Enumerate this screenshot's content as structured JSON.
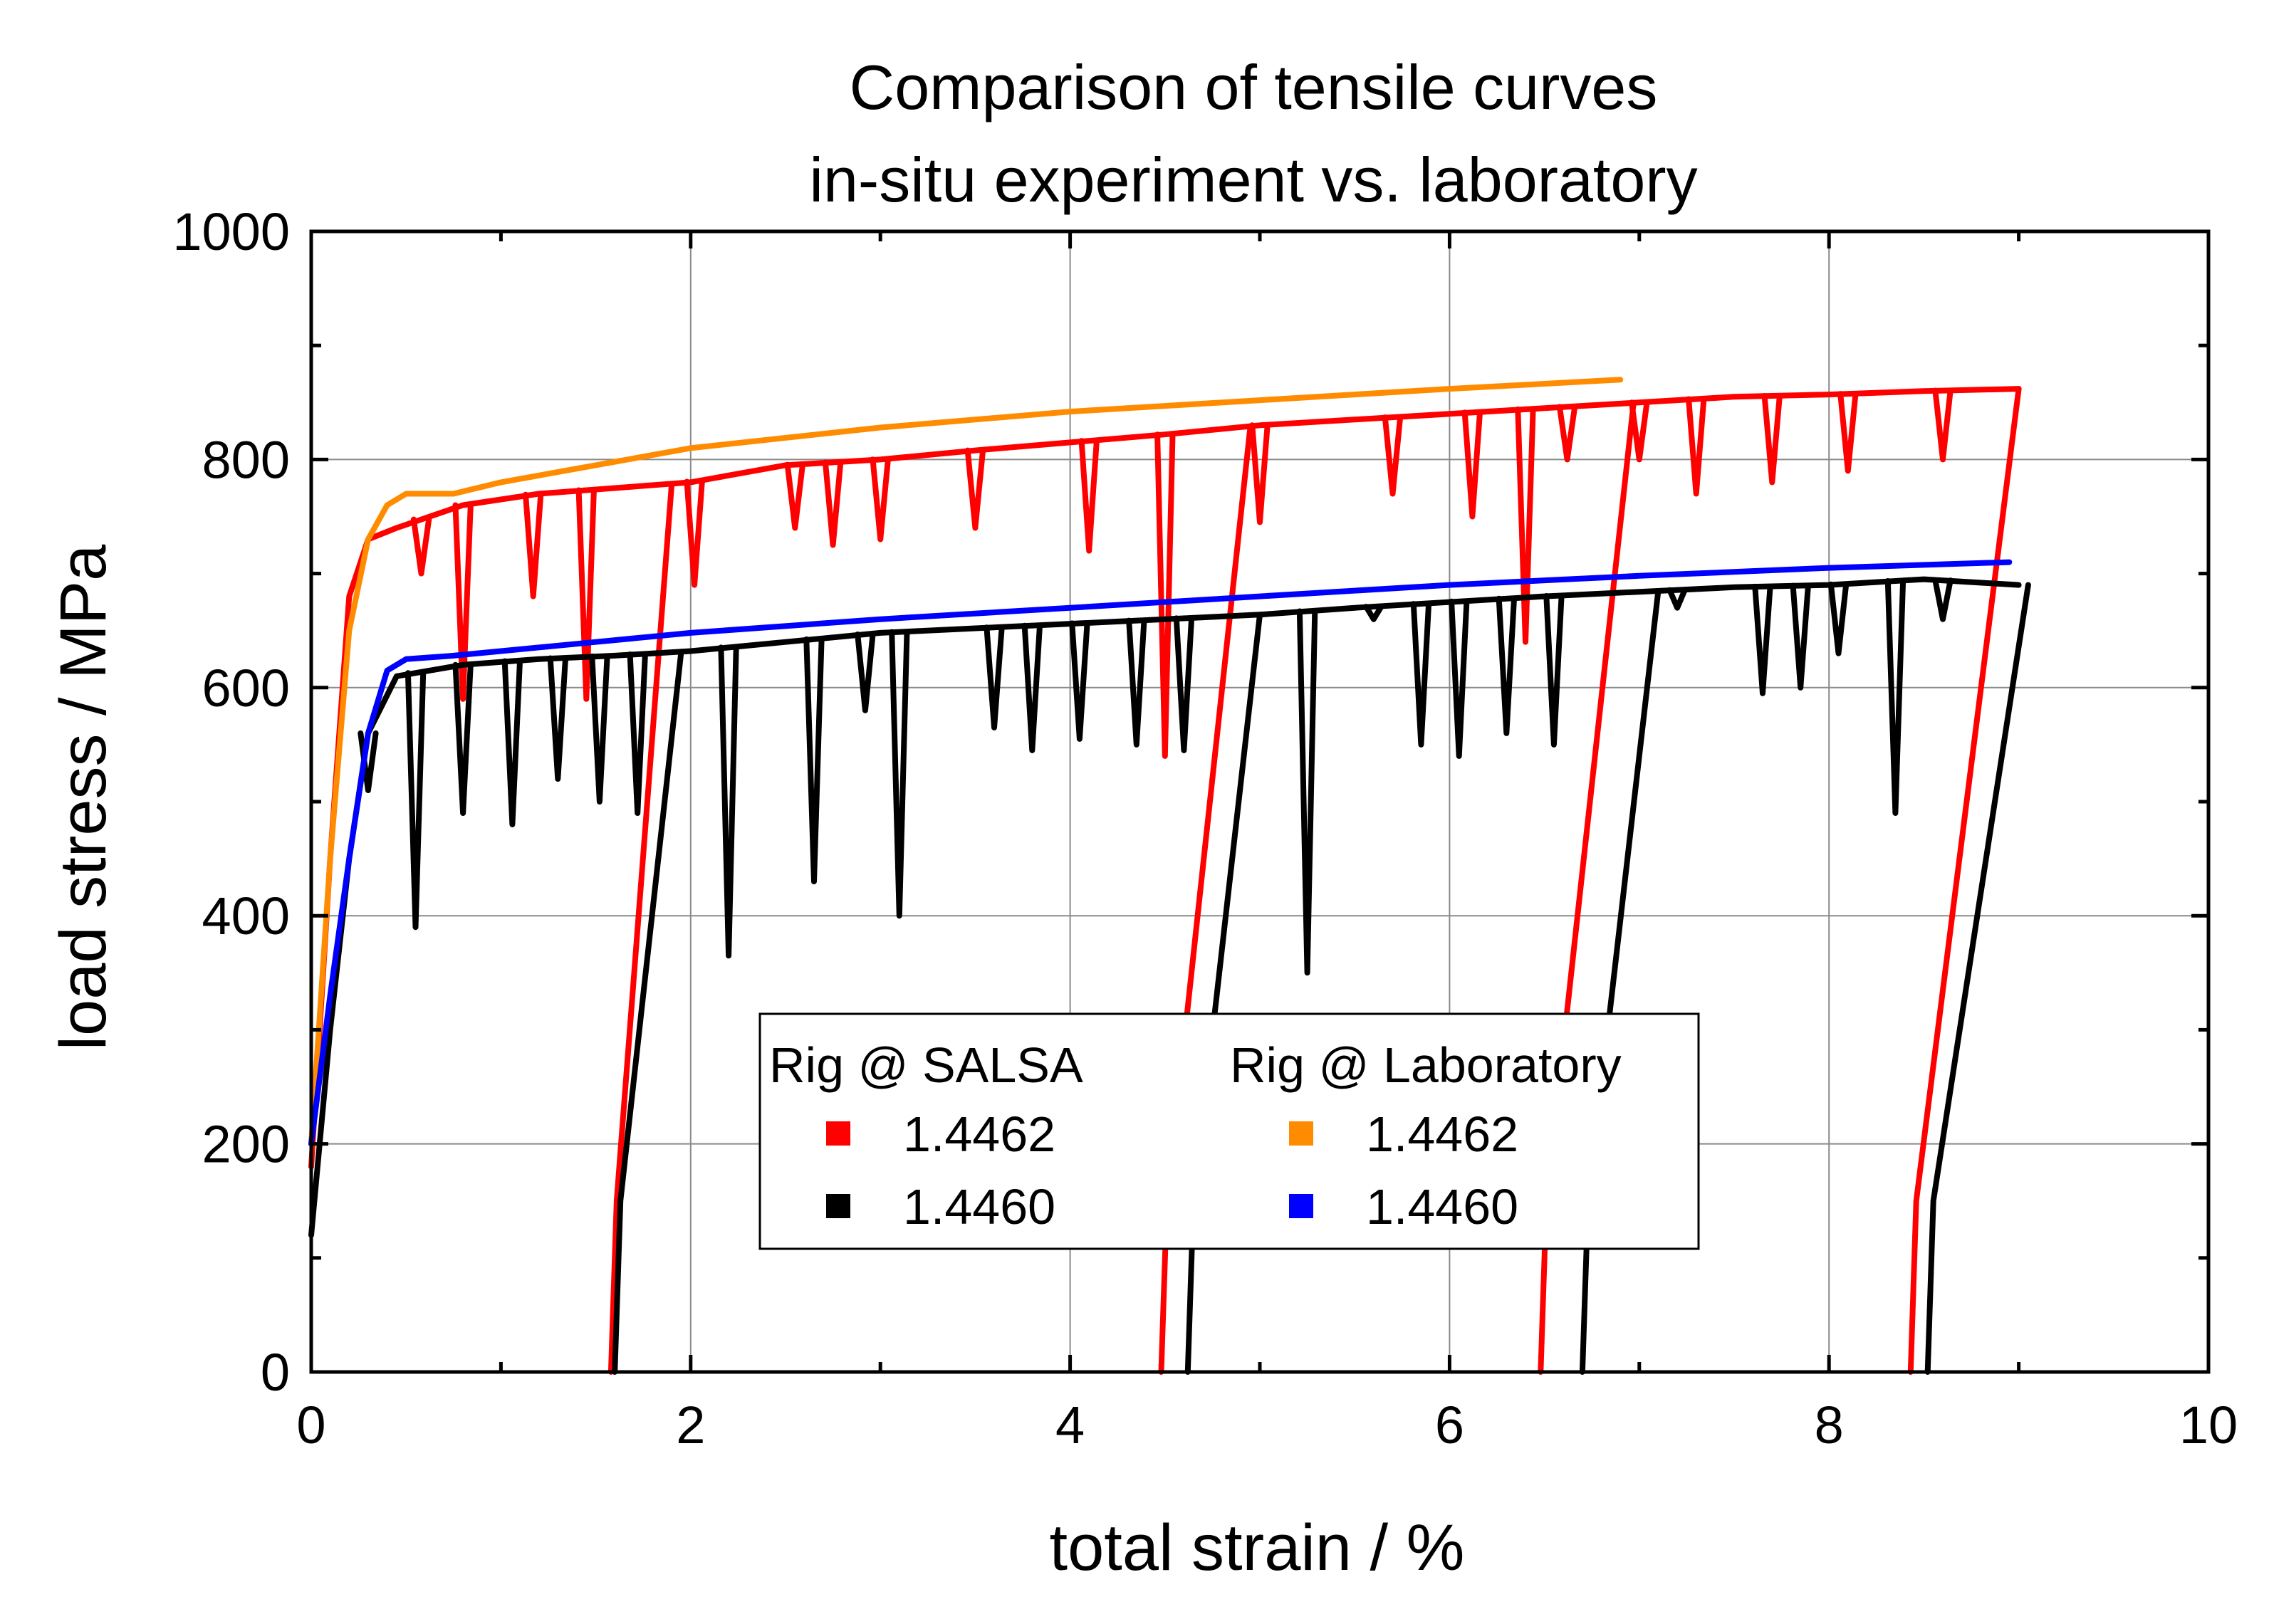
{
  "chart_data": {
    "type": "line",
    "title": [
      "Comparison of tensile curves",
      "in-situ experiment vs. laboratory"
    ],
    "xlabel": "total strain / %",
    "ylabel": "load stress / MPa",
    "xlim": [
      0,
      10
    ],
    "ylim": [
      0,
      1000
    ],
    "xticks": [
      0,
      2,
      4,
      6,
      8,
      10
    ],
    "yticks": [
      0,
      200,
      400,
      600,
      800,
      1000
    ],
    "grid": true,
    "legend": {
      "placement": "center-bottom",
      "groups": [
        {
          "title": "Rig @ SALSA",
          "entries": [
            {
              "label": "1.4462",
              "color": "#ff0000"
            },
            {
              "label": "1.4460",
              "color": "#000000"
            }
          ]
        },
        {
          "title": "Rig @ Laboratory",
          "entries": [
            {
              "label": "1.4462",
              "color": "#ff8c00"
            },
            {
              "label": "1.4460",
              "color": "#0000ff"
            }
          ]
        }
      ]
    },
    "series": [
      {
        "name": "Rig @ SALSA 1.4462",
        "color": "#ff0000",
        "envelope": {
          "x": [
            0.0,
            0.1,
            0.2,
            0.3,
            0.45,
            0.8,
            1.2,
            1.6,
            2.0,
            2.5,
            3.0,
            3.5,
            4.0,
            4.5,
            5.0,
            5.5,
            6.0,
            6.5,
            7.0,
            7.5,
            8.0,
            8.5,
            9.0
          ],
          "y": [
            180,
            450,
            680,
            730,
            740,
            760,
            770,
            775,
            780,
            795,
            800,
            808,
            815,
            822,
            830,
            835,
            840,
            845,
            850,
            855,
            857,
            860,
            862
          ]
        },
        "dips": [
          {
            "x": 0.58,
            "y": 700
          },
          {
            "x": 0.8,
            "y": 590
          },
          {
            "x": 1.17,
            "y": 680
          },
          {
            "x": 1.45,
            "y": 590
          },
          {
            "x": 2.02,
            "y": 690
          },
          {
            "x": 2.55,
            "y": 740
          },
          {
            "x": 2.75,
            "y": 725
          },
          {
            "x": 3.0,
            "y": 730
          },
          {
            "x": 3.5,
            "y": 740
          },
          {
            "x": 4.1,
            "y": 720
          },
          {
            "x": 4.5,
            "y": 540
          },
          {
            "x": 5.0,
            "y": 745
          },
          {
            "x": 5.7,
            "y": 770
          },
          {
            "x": 6.12,
            "y": 750
          },
          {
            "x": 6.4,
            "y": 640
          },
          {
            "x": 6.62,
            "y": 800
          },
          {
            "x": 7.0,
            "y": 800
          },
          {
            "x": 7.3,
            "y": 770
          },
          {
            "x": 7.7,
            "y": 780
          },
          {
            "x": 8.1,
            "y": 790
          },
          {
            "x": 8.6,
            "y": 800
          }
        ],
        "unloadings": [
          {
            "from_x": 1.9,
            "to_x": 1.58
          },
          {
            "from_x": 4.95,
            "to_x": 4.48
          },
          {
            "from_x": 6.97,
            "to_x": 6.48
          },
          {
            "from_x": 9.0,
            "to_x": 8.43
          }
        ]
      },
      {
        "name": "Rig @ SALSA 1.4460",
        "color": "#000000",
        "envelope": {
          "x": [
            0.0,
            0.1,
            0.2,
            0.3,
            0.45,
            0.8,
            1.2,
            1.6,
            2.0,
            2.5,
            3.0,
            3.5,
            4.0,
            4.5,
            5.0,
            5.5,
            6.0,
            6.5,
            7.0,
            7.5,
            8.0,
            8.5,
            9.0
          ],
          "y": [
            120,
            300,
            450,
            560,
            610,
            620,
            625,
            628,
            632,
            640,
            648,
            652,
            656,
            660,
            664,
            670,
            675,
            680,
            684,
            688,
            690,
            695,
            690
          ]
        },
        "dips": [
          {
            "x": 0.3,
            "y": 510
          },
          {
            "x": 0.55,
            "y": 390
          },
          {
            "x": 0.8,
            "y": 490
          },
          {
            "x": 1.06,
            "y": 480
          },
          {
            "x": 1.3,
            "y": 520
          },
          {
            "x": 1.52,
            "y": 500
          },
          {
            "x": 1.72,
            "y": 490
          },
          {
            "x": 2.2,
            "y": 365
          },
          {
            "x": 2.65,
            "y": 430
          },
          {
            "x": 2.92,
            "y": 580
          },
          {
            "x": 3.1,
            "y": 400
          },
          {
            "x": 3.6,
            "y": 565
          },
          {
            "x": 3.8,
            "y": 545
          },
          {
            "x": 4.05,
            "y": 555
          },
          {
            "x": 4.35,
            "y": 550
          },
          {
            "x": 4.6,
            "y": 545
          },
          {
            "x": 5.25,
            "y": 350
          },
          {
            "x": 5.6,
            "y": 660
          },
          {
            "x": 5.85,
            "y": 550
          },
          {
            "x": 6.05,
            "y": 540
          },
          {
            "x": 6.3,
            "y": 560
          },
          {
            "x": 6.55,
            "y": 550
          },
          {
            "x": 7.2,
            "y": 670
          },
          {
            "x": 7.65,
            "y": 595
          },
          {
            "x": 7.85,
            "y": 600
          },
          {
            "x": 8.05,
            "y": 630
          },
          {
            "x": 8.35,
            "y": 490
          },
          {
            "x": 8.6,
            "y": 660
          }
        ],
        "unloadings": [
          {
            "from_x": 1.95,
            "to_x": 1.6
          },
          {
            "from_x": 5.0,
            "to_x": 4.62
          },
          {
            "from_x": 7.1,
            "to_x": 6.7
          },
          {
            "from_x": 9.05,
            "to_x": 8.52
          }
        ]
      },
      {
        "name": "Rig @ Laboratory 1.4462",
        "color": "#ff8c00",
        "x": [
          0.0,
          0.1,
          0.2,
          0.3,
          0.4,
          0.5,
          0.75,
          1.0,
          1.5,
          2.0,
          3.0,
          4.0,
          5.0,
          6.0,
          6.9
        ],
        "y": [
          200,
          450,
          650,
          730,
          760,
          770,
          770,
          780,
          795,
          810,
          828,
          842,
          852,
          862,
          870
        ]
      },
      {
        "name": "Rig @ Laboratory 1.4460",
        "color": "#0000ff",
        "x": [
          0.0,
          0.1,
          0.2,
          0.3,
          0.4,
          0.5,
          0.75,
          1.0,
          1.5,
          2.0,
          3.0,
          4.0,
          5.0,
          6.0,
          7.0,
          8.0,
          8.95
        ],
        "y": [
          200,
          330,
          450,
          560,
          615,
          625,
          628,
          632,
          640,
          648,
          660,
          670,
          680,
          690,
          698,
          705,
          710
        ]
      }
    ]
  }
}
